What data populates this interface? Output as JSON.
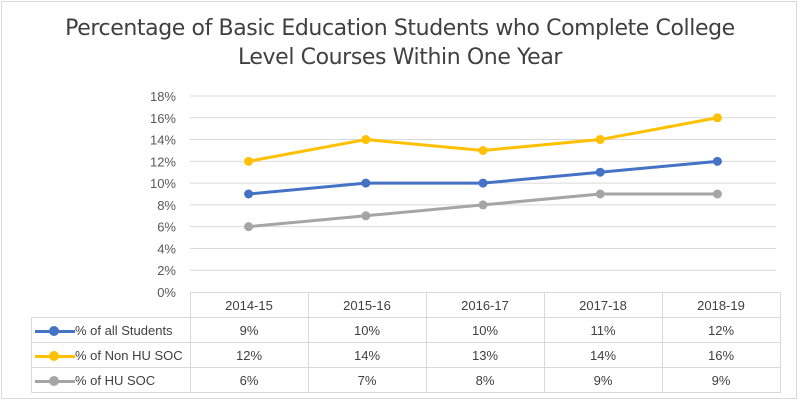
{
  "chart_data": {
    "type": "line",
    "title": "Percentage of Basic Education Students who Complete College Level Courses Within One Year",
    "title_lines": [
      "Percentage of Basic Education Students who Complete College",
      "Level Courses Within One Year"
    ],
    "categories": [
      "2014-15",
      "2015-16",
      "2016-17",
      "2017-18",
      "2018-19"
    ],
    "series": [
      {
        "name": "% of all Students",
        "color": "#4472C4",
        "values": [
          9,
          10,
          10,
          11,
          12
        ],
        "labels": [
          "9%",
          "10%",
          "10%",
          "11%",
          "12%"
        ]
      },
      {
        "name": "% of Non HU SOC",
        "color": "#FFC000",
        "values": [
          12,
          14,
          13,
          14,
          16
        ],
        "labels": [
          "12%",
          "14%",
          "13%",
          "14%",
          "16%"
        ]
      },
      {
        "name": "% of HU SOC",
        "color": "#A5A5A5",
        "values": [
          6,
          7,
          8,
          9,
          9
        ],
        "labels": [
          "6%",
          "7%",
          "8%",
          "9%",
          "9%"
        ]
      }
    ],
    "xlabel": "",
    "ylabel": "",
    "ylim": [
      0,
      18
    ],
    "yticks": [
      "0%",
      "2%",
      "4%",
      "6%",
      "8%",
      "10%",
      "12%",
      "14%",
      "16%",
      "18%"
    ],
    "grid": true,
    "legend_position": "data-table"
  }
}
